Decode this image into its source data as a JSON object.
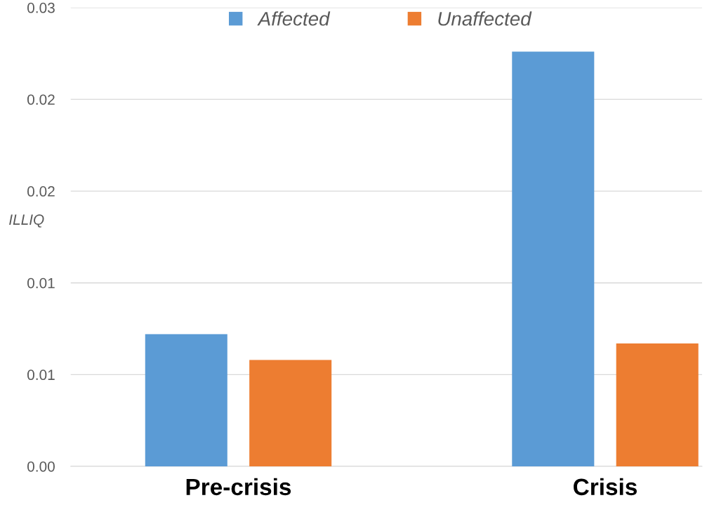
{
  "chart_data": {
    "type": "bar",
    "ylabel": "ILLIQ",
    "categories": [
      "Pre-crisis",
      "Crisis"
    ],
    "series": [
      {
        "name": "Affected",
        "color": "#5b9bd5",
        "values": [
          0.0072,
          0.0226
        ]
      },
      {
        "name": "Unaffected",
        "color": "#ed7d31",
        "values": [
          0.0058,
          0.0067
        ]
      }
    ],
    "ylim": [
      0,
      0.025
    ],
    "yticks": [
      {
        "value": 0,
        "label": "0.00"
      },
      {
        "value": 0.005,
        "label": "0.01"
      },
      {
        "value": 0.01,
        "label": "0.01"
      },
      {
        "value": 0.015,
        "label": "0.02"
      },
      {
        "value": 0.02,
        "label": "0.02"
      },
      {
        "value": 0.025,
        "label": "0.03"
      }
    ],
    "grid": "y",
    "legend": "top"
  }
}
